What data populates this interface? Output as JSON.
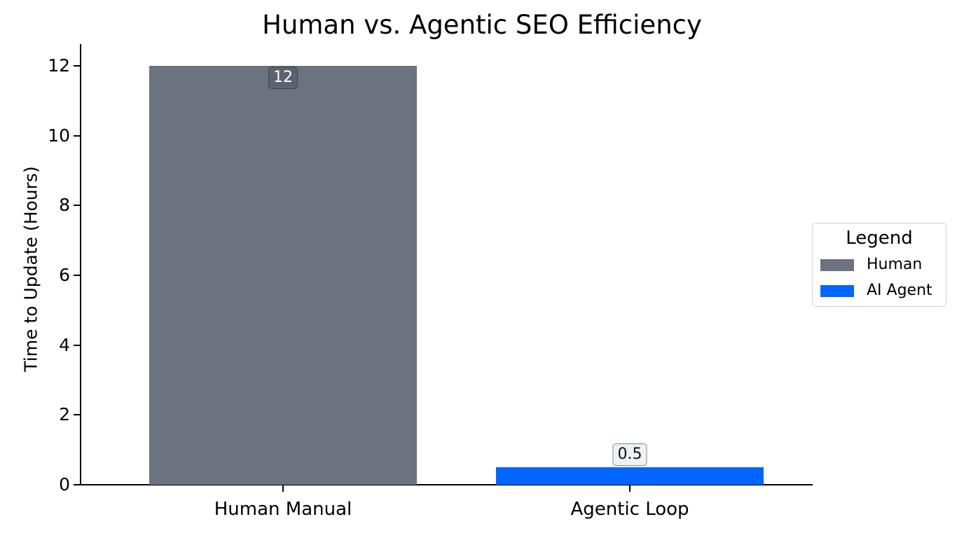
{
  "chart_data": {
    "type": "bar",
    "title": "Human vs. Agentic SEO Efficiency",
    "xlabel": "",
    "ylabel": "Time to Update (Hours)",
    "categories": [
      "Human Manual",
      "Agentic Loop"
    ],
    "values": [
      12,
      0.5
    ],
    "value_labels": [
      "12",
      "0.5"
    ],
    "colors": [
      "#6b7280",
      "#0066ff"
    ],
    "ylim": [
      0,
      12.6
    ],
    "yticks": [
      0,
      2,
      4,
      6,
      8,
      10,
      12
    ],
    "ytick_labels": [
      "0",
      "2",
      "4",
      "6",
      "8",
      "10",
      "12"
    ],
    "grid": false,
    "legend": {
      "title": "Legend",
      "position": "right",
      "entries": [
        {
          "label": "Human",
          "color": "#6b7280"
        },
        {
          "label": "AI Agent",
          "color": "#0066ff"
        }
      ]
    }
  }
}
